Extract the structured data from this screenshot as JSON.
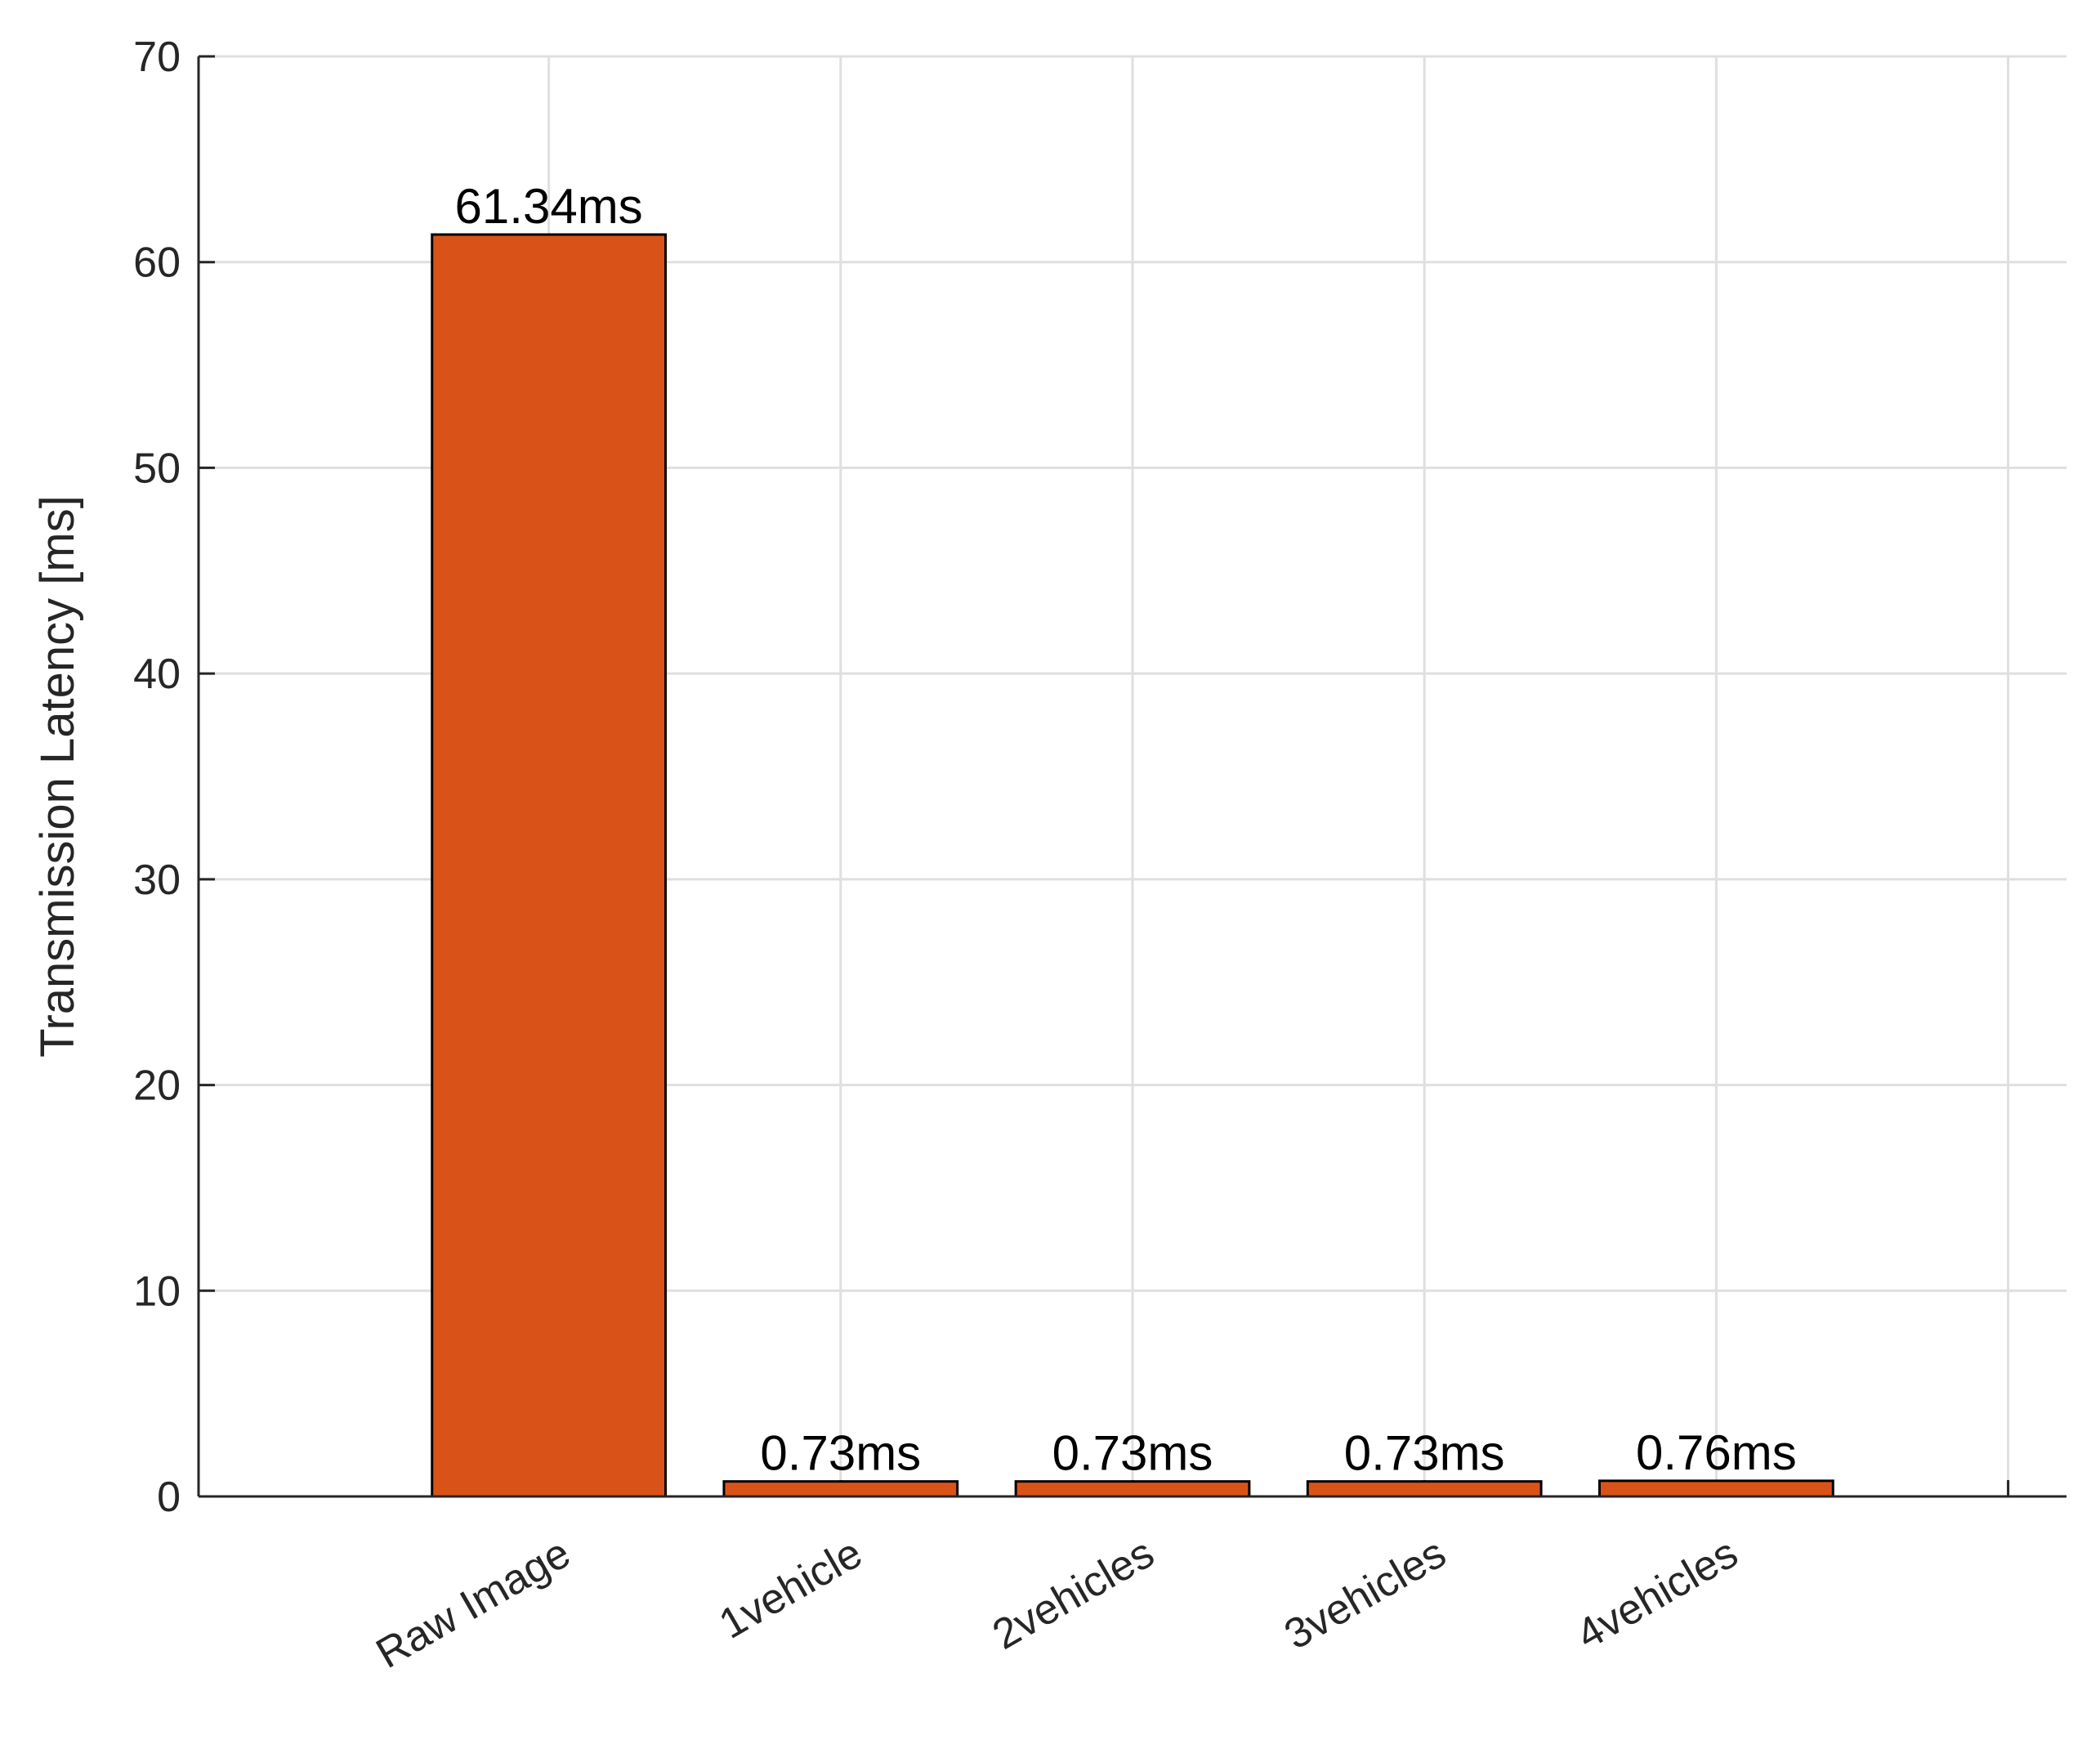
{
  "chart_data": {
    "type": "bar",
    "y_label": "Transmission Latency [ms]",
    "categories": [
      "Raw Image",
      "1vehicle",
      "2vehicles",
      "3vehicles",
      "4vehicles",
      null
    ],
    "values": [
      61.34,
      0.73,
      0.73,
      0.73,
      0.76,
      null
    ],
    "value_labels": [
      "61.34ms",
      "0.73ms",
      "0.73ms",
      "0.73ms",
      "0.76ms",
      null
    ],
    "color": "#d95319",
    "ylim": [
      0,
      70
    ],
    "yticks": [
      0,
      10,
      20,
      30,
      40,
      50,
      60,
      70
    ],
    "grid": true
  }
}
